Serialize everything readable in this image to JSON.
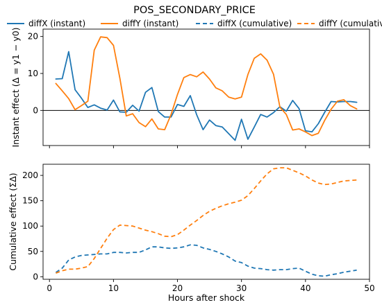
{
  "chart_data": {
    "type": "line",
    "title": "POS_SECONDARY_PRICE",
    "legend": {
      "placement": "top",
      "entries": [
        {
          "label": "diffX (instant)",
          "color": "#1f77b4",
          "style": "solid"
        },
        {
          "label": "diffY (instant)",
          "color": "#ff7f0e",
          "style": "solid"
        },
        {
          "label": "diffX (cumulative)",
          "color": "#1f77b4",
          "style": "dashed"
        },
        {
          "label": "diffY (cumulative)",
          "color": "#ff7f0e",
          "style": "dashed"
        }
      ]
    },
    "xlabel": "Hours after shock",
    "xlim": [
      -1,
      50
    ],
    "xticks": [
      0,
      10,
      20,
      30,
      40,
      50
    ],
    "panels": [
      {
        "ylabel": "Instant effect (Δ = y1 − y0)",
        "ylim": [
          -9.5,
          22
        ],
        "yticks": [
          0,
          10,
          20
        ],
        "hline": 0,
        "series": [
          {
            "name": "diffX (instant)",
            "color": "#1f77b4",
            "style": "solid",
            "x": [
              1,
              2,
              3,
              4,
              5,
              6,
              7,
              8,
              9,
              10,
              11,
              12,
              13,
              14,
              15,
              16,
              17,
              18,
              19,
              20,
              21,
              22,
              23,
              24,
              25,
              26,
              27,
              28,
              29,
              30,
              31,
              32,
              33,
              34,
              35,
              36,
              37,
              38,
              39,
              40,
              41,
              42,
              43,
              44,
              45,
              46,
              47,
              48
            ],
            "values": [
              8.5,
              8.6,
              15.9,
              5.6,
              3.3,
              0.8,
              1.5,
              0.6,
              0.1,
              2.8,
              -0.4,
              -0.5,
              1.4,
              -0.2,
              4.9,
              6.2,
              -0.3,
              -1.8,
              -1.8,
              1.6,
              1.1,
              4.0,
              -1.2,
              -5.2,
              -2.6,
              -4.1,
              -4.5,
              -6.3,
              -8.1,
              -2.4,
              -7.8,
              -4.5,
              -1.1,
              -1.8,
              -0.6,
              1.0,
              -0.2,
              2.7,
              0.5,
              -5.5,
              -5.8,
              -3.6,
              -0.5,
              2.4,
              2.3,
              2.4,
              2.4,
              2.2
            ]
          },
          {
            "name": "diffY (instant)",
            "color": "#ff7f0e",
            "style": "solid",
            "x": [
              1,
              2,
              3,
              4,
              5,
              6,
              7,
              8,
              9,
              10,
              11,
              12,
              13,
              14,
              15,
              16,
              17,
              18,
              19,
              20,
              21,
              22,
              23,
              24,
              25,
              26,
              27,
              28,
              29,
              30,
              31,
              32,
              33,
              34,
              35,
              36,
              37,
              38,
              39,
              40,
              41,
              42,
              43,
              44,
              45,
              46,
              47,
              48
            ],
            "values": [
              7.3,
              5.3,
              3.2,
              0.2,
              1.3,
              2.5,
              16.3,
              19.9,
              19.7,
              17.6,
              8.7,
              -1.5,
              -0.9,
              -3.3,
              -4.4,
              -2.3,
              -5.0,
              -5.2,
              -1.1,
              4.3,
              8.9,
              9.7,
              9.1,
              10.4,
              8.5,
              6.1,
              5.3,
              3.6,
              3.1,
              3.6,
              9.7,
              14.1,
              15.3,
              13.6,
              9.8,
              0.9,
              -1.1,
              -5.3,
              -5.0,
              -5.8,
              -6.8,
              -6.2,
              -2.7,
              0.3,
              2.5,
              2.9,
              1.3,
              0.4
            ]
          }
        ]
      },
      {
        "ylabel": "Cumulative effect (ΣΔ)",
        "ylim": [
          -5,
          222
        ],
        "yticks": [
          0,
          50,
          100,
          150,
          200
        ],
        "series": [
          {
            "name": "diffX (cumulative)",
            "color": "#1f77b4",
            "style": "dashed",
            "x": [
              1,
              2,
              3,
              4,
              5,
              6,
              7,
              8,
              9,
              10,
              11,
              12,
              13,
              14,
              15,
              16,
              17,
              18,
              19,
              20,
              21,
              22,
              23,
              24,
              25,
              26,
              27,
              28,
              29,
              30,
              31,
              32,
              33,
              34,
              35,
              36,
              37,
              38,
              39,
              40,
              41,
              42,
              43,
              44,
              45,
              46,
              47,
              48
            ],
            "values": [
              8.5,
              17,
              33,
              39,
              42,
              43,
              44,
              45,
              45,
              48,
              48,
              47,
              48,
              48,
              53,
              59,
              59,
              57,
              56,
              57,
              59,
              63,
              62,
              57,
              54,
              50,
              45,
              39,
              31,
              28,
              21,
              17,
              16,
              14,
              13,
              14,
              14,
              16,
              17,
              11,
              5,
              2,
              1,
              4,
              6,
              9,
              11,
              13
            ]
          },
          {
            "name": "diffY (cumulative)",
            "color": "#ff7f0e",
            "style": "dashed",
            "x": [
              1,
              2,
              3,
              4,
              5,
              6,
              7,
              8,
              9,
              10,
              11,
              12,
              13,
              14,
              15,
              16,
              17,
              18,
              19,
              20,
              21,
              22,
              23,
              24,
              25,
              26,
              27,
              28,
              29,
              30,
              31,
              32,
              33,
              34,
              35,
              36,
              37,
              38,
              39,
              40,
              41,
              42,
              43,
              44,
              45,
              46,
              47,
              48
            ],
            "values": [
              7,
              12,
              15,
              15,
              17,
              20,
              36,
              56,
              76,
              93,
              102,
              101,
              100,
              96,
              92,
              89,
              85,
              80,
              79,
              83,
              92,
              102,
              111,
              121,
              129,
              135,
              140,
              144,
              147,
              151,
              160,
              174,
              189,
              203,
              213,
              215,
              215,
              210,
              205,
              199,
              191,
              185,
              182,
              183,
              186,
              189,
              190,
              191
            ]
          }
        ]
      }
    ]
  }
}
